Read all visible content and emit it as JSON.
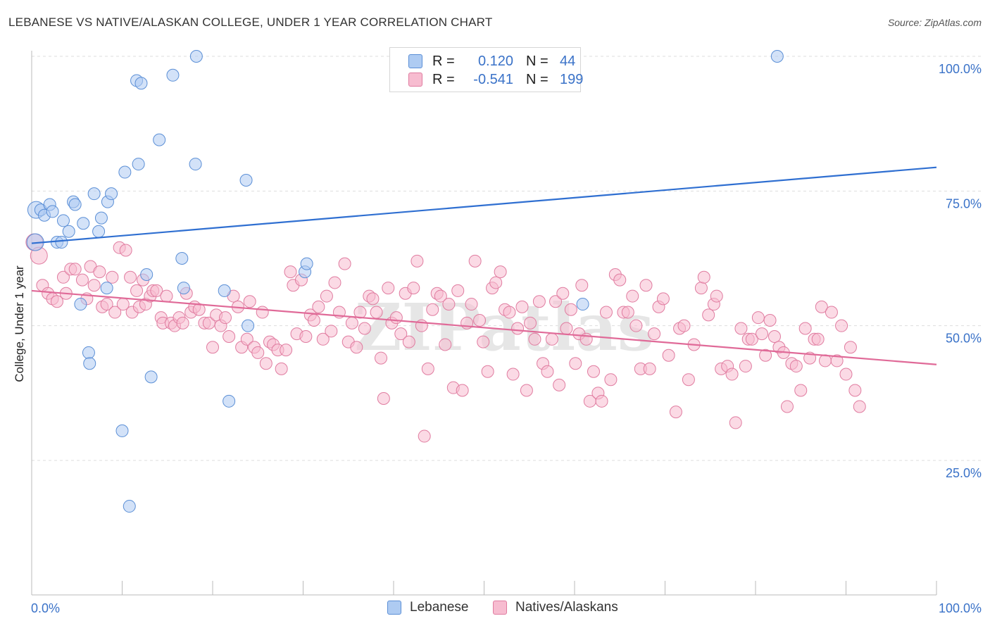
{
  "title": "LEBANESE VS NATIVE/ALASKAN COLLEGE, UNDER 1 YEAR CORRELATION CHART",
  "source": "Source: ZipAtlas.com",
  "watermark": "ZIPatlas",
  "legend": {
    "rows": [
      {
        "r_label": "R =",
        "r_value": "0.120",
        "n_label": "N =",
        "n_value": "44",
        "color": "#aecbf2",
        "border": "#5b8fd6"
      },
      {
        "r_label": "R =",
        "r_value": "-0.541",
        "n_label": "N =",
        "n_value": "199",
        "color": "#f7bcd0",
        "border": "#e07ca0"
      }
    ],
    "bottom": [
      {
        "label": "Lebanese",
        "color": "#aecbf2",
        "border": "#5b8fd6"
      },
      {
        "label": "Natives/Alaskans",
        "color": "#f7bcd0",
        "border": "#e07ca0"
      }
    ]
  },
  "chart_data": {
    "type": "scatter",
    "title": "LEBANESE VS NATIVE/ALASKAN COLLEGE, UNDER 1 YEAR CORRELATION CHART",
    "xlabel": "",
    "ylabel": "College, Under 1 year",
    "x_tick_labels": [
      "0.0%",
      "100.0%"
    ],
    "y_tick_labels": [
      "100.0%",
      "75.0%",
      "50.0%",
      "25.0%"
    ],
    "y_ticks": [
      100,
      75,
      50,
      25
    ],
    "xlim": [
      0,
      100
    ],
    "ylim": [
      0,
      105
    ],
    "grid": true,
    "series": [
      {
        "name": "Lebanese",
        "color": "#aecbf2",
        "stroke": "#5b8fd6",
        "line_color": "#2f6fd1",
        "trend": {
          "x": [
            0,
            100
          ],
          "y": [
            65.3,
            79.4
          ]
        },
        "points": [
          [
            0.4,
            65.5
          ],
          [
            0.5,
            71.5
          ],
          [
            1.0,
            71.5
          ],
          [
            1.4,
            70.5
          ],
          [
            2.0,
            72.5
          ],
          [
            2.3,
            71.2
          ],
          [
            2.8,
            65.5
          ],
          [
            3.3,
            65.5
          ],
          [
            3.5,
            69.5
          ],
          [
            4.1,
            67.5
          ],
          [
            4.6,
            73.0
          ],
          [
            4.8,
            72.5
          ],
          [
            5.7,
            69.0
          ],
          [
            6.9,
            74.5
          ],
          [
            7.4,
            67.5
          ],
          [
            7.7,
            70.0
          ],
          [
            8.4,
            73.0
          ],
          [
            8.8,
            74.5
          ],
          [
            10.0,
            30.5
          ],
          [
            10.3,
            78.5
          ],
          [
            10.8,
            16.5
          ],
          [
            11.6,
            95.5
          ],
          [
            12.1,
            95.0
          ],
          [
            11.8,
            80.0
          ],
          [
            12.7,
            59.5
          ],
          [
            13.2,
            40.5
          ],
          [
            14.1,
            84.5
          ],
          [
            16.6,
            62.5
          ],
          [
            16.8,
            57.0
          ],
          [
            18.1,
            80.0
          ],
          [
            18.2,
            100.0
          ],
          [
            21.3,
            56.5
          ],
          [
            21.8,
            36.0
          ],
          [
            23.7,
            77.0
          ],
          [
            23.9,
            50.0
          ],
          [
            30.2,
            60.0
          ],
          [
            30.4,
            61.5
          ],
          [
            60.9,
            54.0
          ],
          [
            82.4,
            100.0
          ],
          [
            6.3,
            45.0
          ],
          [
            6.4,
            43.0
          ],
          [
            5.4,
            54.0
          ],
          [
            8.3,
            57.0
          ],
          [
            15.6,
            96.5
          ]
        ]
      },
      {
        "name": "Natives/Alaskans",
        "color": "#f7bcd0",
        "stroke": "#e07ca0",
        "line_color": "#e06a98",
        "trend": {
          "x": [
            0,
            100
          ],
          "y": [
            56.5,
            42.8
          ]
        },
        "points": [
          [
            0.3,
            65.5
          ],
          [
            0.8,
            63.0
          ],
          [
            1.2,
            57.5
          ],
          [
            1.8,
            56.0
          ],
          [
            2.3,
            55.0
          ],
          [
            2.8,
            54.5
          ],
          [
            3.5,
            59.0
          ],
          [
            3.8,
            56.0
          ],
          [
            4.3,
            60.5
          ],
          [
            4.8,
            60.5
          ],
          [
            5.6,
            58.5
          ],
          [
            6.1,
            55.0
          ],
          [
            6.5,
            61.0
          ],
          [
            6.9,
            57.5
          ],
          [
            7.5,
            60.0
          ],
          [
            7.8,
            53.5
          ],
          [
            8.3,
            54.0
          ],
          [
            8.9,
            59.0
          ],
          [
            9.2,
            52.5
          ],
          [
            9.7,
            64.5
          ],
          [
            10.1,
            54.0
          ],
          [
            10.4,
            64.0
          ],
          [
            10.9,
            59.0
          ],
          [
            11.1,
            52.5
          ],
          [
            11.6,
            56.5
          ],
          [
            11.9,
            53.5
          ],
          [
            12.3,
            58.5
          ],
          [
            12.6,
            54.0
          ],
          [
            13.1,
            55.5
          ],
          [
            13.4,
            56.5
          ],
          [
            13.8,
            56.5
          ],
          [
            14.3,
            51.5
          ],
          [
            14.5,
            50.5
          ],
          [
            14.9,
            55.5
          ],
          [
            15.4,
            50.5
          ],
          [
            15.8,
            50.0
          ],
          [
            16.3,
            51.5
          ],
          [
            16.7,
            50.5
          ],
          [
            17.1,
            56.0
          ],
          [
            17.6,
            52.5
          ],
          [
            18.0,
            53.5
          ],
          [
            18.5,
            53.0
          ],
          [
            19.1,
            50.5
          ],
          [
            19.6,
            50.5
          ],
          [
            20.0,
            46.0
          ],
          [
            20.4,
            52.0
          ],
          [
            20.9,
            50.0
          ],
          [
            21.4,
            51.5
          ],
          [
            21.8,
            48.0
          ],
          [
            22.3,
            55.5
          ],
          [
            22.8,
            53.5
          ],
          [
            23.2,
            46.0
          ],
          [
            23.8,
            47.5
          ],
          [
            24.1,
            54.5
          ],
          [
            24.6,
            46.0
          ],
          [
            25.0,
            45.0
          ],
          [
            25.5,
            52.5
          ],
          [
            25.9,
            43.0
          ],
          [
            26.3,
            47.0
          ],
          [
            26.7,
            46.5
          ],
          [
            27.2,
            45.5
          ],
          [
            27.6,
            42.0
          ],
          [
            28.1,
            45.5
          ],
          [
            28.6,
            60.0
          ],
          [
            28.9,
            57.5
          ],
          [
            29.3,
            48.5
          ],
          [
            29.8,
            58.5
          ],
          [
            30.3,
            48.0
          ],
          [
            30.8,
            52.0
          ],
          [
            31.2,
            51.0
          ],
          [
            31.7,
            53.5
          ],
          [
            32.2,
            47.5
          ],
          [
            32.6,
            55.5
          ],
          [
            33.1,
            49.0
          ],
          [
            33.5,
            58.0
          ],
          [
            34.0,
            52.5
          ],
          [
            34.6,
            61.5
          ],
          [
            35.0,
            47.0
          ],
          [
            35.4,
            50.5
          ],
          [
            35.9,
            46.0
          ],
          [
            36.3,
            52.5
          ],
          [
            36.8,
            49.5
          ],
          [
            37.3,
            55.5
          ],
          [
            37.7,
            55.0
          ],
          [
            38.1,
            52.5
          ],
          [
            38.6,
            44.0
          ],
          [
            38.9,
            36.5
          ],
          [
            39.4,
            57.0
          ],
          [
            39.8,
            50.5
          ],
          [
            40.3,
            51.5
          ],
          [
            40.8,
            48.5
          ],
          [
            41.3,
            56.0
          ],
          [
            41.7,
            47.0
          ],
          [
            42.2,
            57.0
          ],
          [
            42.6,
            62.0
          ],
          [
            43.1,
            50.0
          ],
          [
            43.4,
            29.5
          ],
          [
            43.8,
            42.0
          ],
          [
            44.3,
            53.0
          ],
          [
            44.8,
            56.0
          ],
          [
            45.2,
            55.5
          ],
          [
            45.7,
            46.5
          ],
          [
            46.1,
            54.0
          ],
          [
            46.6,
            38.5
          ],
          [
            47.1,
            56.5
          ],
          [
            47.6,
            38.0
          ],
          [
            48.1,
            50.5
          ],
          [
            48.6,
            54.0
          ],
          [
            49.0,
            62.0
          ],
          [
            49.5,
            51.0
          ],
          [
            49.9,
            47.0
          ],
          [
            50.4,
            41.5
          ],
          [
            50.9,
            57.0
          ],
          [
            51.3,
            58.0
          ],
          [
            51.8,
            60.0
          ],
          [
            52.3,
            53.0
          ],
          [
            52.8,
            52.5
          ],
          [
            53.2,
            41.0
          ],
          [
            53.7,
            49.5
          ],
          [
            54.2,
            53.5
          ],
          [
            54.7,
            38.0
          ],
          [
            55.1,
            50.5
          ],
          [
            55.6,
            47.5
          ],
          [
            56.1,
            54.5
          ],
          [
            56.5,
            43.0
          ],
          [
            57.0,
            41.5
          ],
          [
            57.5,
            47.5
          ],
          [
            57.9,
            54.5
          ],
          [
            58.3,
            39.0
          ],
          [
            58.7,
            56.0
          ],
          [
            59.1,
            49.5
          ],
          [
            59.6,
            53.0
          ],
          [
            60.1,
            43.0
          ],
          [
            60.5,
            48.5
          ],
          [
            60.8,
            57.5
          ],
          [
            61.3,
            47.5
          ],
          [
            61.7,
            36.0
          ],
          [
            62.1,
            41.5
          ],
          [
            62.6,
            37.5
          ],
          [
            63.0,
            36.0
          ],
          [
            63.5,
            52.5
          ],
          [
            64.0,
            40.0
          ],
          [
            64.5,
            59.5
          ],
          [
            65.0,
            58.5
          ],
          [
            65.4,
            52.5
          ],
          [
            65.9,
            52.5
          ],
          [
            66.4,
            55.5
          ],
          [
            66.8,
            50.0
          ],
          [
            67.3,
            42.0
          ],
          [
            67.9,
            57.5
          ],
          [
            68.3,
            42.0
          ],
          [
            68.8,
            48.5
          ],
          [
            69.3,
            53.5
          ],
          [
            69.8,
            55.0
          ],
          [
            70.4,
            44.5
          ],
          [
            71.2,
            34.0
          ],
          [
            71.6,
            49.5
          ],
          [
            72.1,
            50.0
          ],
          [
            72.6,
            40.0
          ],
          [
            73.2,
            46.5
          ],
          [
            74.0,
            57.0
          ],
          [
            74.3,
            59.0
          ],
          [
            74.8,
            52.0
          ],
          [
            75.4,
            54.0
          ],
          [
            75.7,
            55.5
          ],
          [
            76.2,
            42.0
          ],
          [
            76.9,
            42.5
          ],
          [
            77.4,
            41.0
          ],
          [
            77.8,
            32.0
          ],
          [
            78.4,
            49.5
          ],
          [
            78.9,
            42.5
          ],
          [
            79.2,
            47.5
          ],
          [
            79.6,
            47.5
          ],
          [
            80.3,
            51.5
          ],
          [
            80.7,
            48.5
          ],
          [
            81.1,
            44.5
          ],
          [
            81.6,
            51.0
          ],
          [
            82.1,
            48.0
          ],
          [
            82.6,
            46.0
          ],
          [
            83.1,
            45.0
          ],
          [
            83.5,
            35.0
          ],
          [
            84.0,
            43.0
          ],
          [
            84.5,
            42.5
          ],
          [
            85.0,
            38.0
          ],
          [
            85.5,
            49.5
          ],
          [
            86.0,
            44.0
          ],
          [
            86.5,
            47.5
          ],
          [
            86.9,
            47.5
          ],
          [
            87.3,
            53.5
          ],
          [
            87.7,
            43.5
          ],
          [
            88.4,
            52.5
          ],
          [
            89.0,
            43.5
          ],
          [
            89.5,
            50.0
          ],
          [
            90.0,
            41.0
          ],
          [
            90.5,
            46.0
          ],
          [
            91.0,
            38.0
          ],
          [
            91.5,
            35.0
          ]
        ]
      }
    ]
  }
}
